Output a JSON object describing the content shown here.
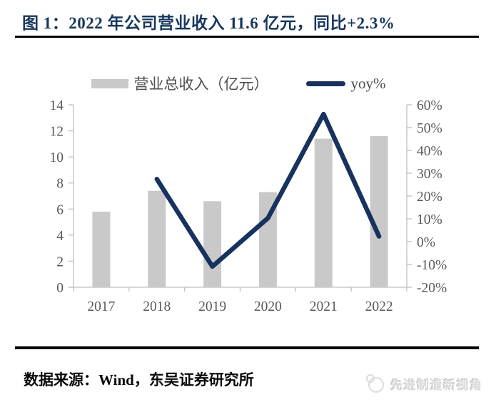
{
  "title": "图 1：2022 年公司营业收入 11.6 亿元，同比+2.3%",
  "source": "数据来源：Wind，东吴证券研究所",
  "watermark": "先进制造新视角",
  "colors": {
    "title_navy": "#17375E",
    "line_navy": "#17325E",
    "bar_gray": "#C9C9C9",
    "axis_gray": "#BFBFBF",
    "tick_label_gray": "#595959",
    "rule_black": "#000000",
    "watermark_gray": "#DCDCDC"
  },
  "chart_data": {
    "type": "combo",
    "categories": [
      "2017",
      "2018",
      "2019",
      "2020",
      "2021",
      "2022"
    ],
    "series": [
      {
        "name": "营业总收入（亿元）",
        "type": "bar",
        "axis": "left",
        "values": [
          5.8,
          7.4,
          6.6,
          7.3,
          11.4,
          11.6
        ]
      },
      {
        "name": "yoy%",
        "type": "line",
        "axis": "right",
        "values": [
          null,
          27.4,
          -10.9,
          10.3,
          55.9,
          2.3
        ]
      }
    ],
    "left_axis": {
      "min": 0,
      "max": 14,
      "step": 2,
      "ticks": [
        "0",
        "2",
        "4",
        "6",
        "8",
        "10",
        "12",
        "14"
      ]
    },
    "right_axis": {
      "min": -20,
      "max": 60,
      "step": 10,
      "ticks": [
        "-20%",
        "-10%",
        "0%",
        "10%",
        "20%",
        "30%",
        "40%",
        "50%",
        "60%"
      ]
    },
    "grid": false,
    "legend_position": "top",
    "title": "2022 年公司营业收入 11.6 亿元，同比+2.3%"
  }
}
